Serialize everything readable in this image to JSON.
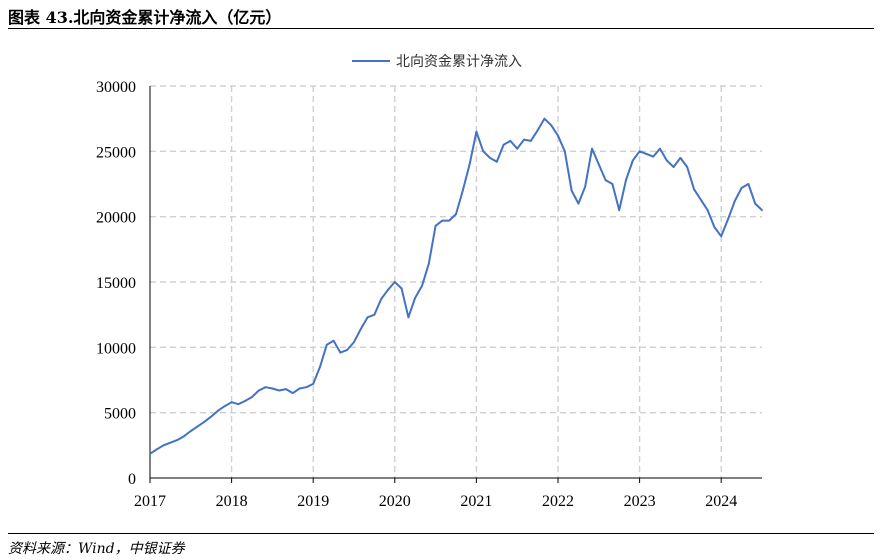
{
  "header": {
    "title": "图表 43.北向资金累计净流入（亿元）"
  },
  "footer": {
    "source": "资料来源：Wind，中银证券"
  },
  "colors": {
    "series": "#4472C4",
    "grid": "#d0d0d0",
    "axis": "#000000"
  },
  "chart_data": {
    "type": "line",
    "title": "",
    "xlabel": "",
    "ylabel": "",
    "ylim": [
      0,
      30000
    ],
    "xlim": [
      "2017-01",
      "2024-07"
    ],
    "yticks": [
      0,
      5000,
      10000,
      15000,
      20000,
      25000,
      30000
    ],
    "xticks": [
      "2017",
      "2018",
      "2019",
      "2020",
      "2021",
      "2022",
      "2023",
      "2024"
    ],
    "grid": true,
    "legend_position": "top-center",
    "series": [
      {
        "name": "北向资金累计净流入",
        "x": [
          "2017-01",
          "2017-02",
          "2017-03",
          "2017-04",
          "2017-05",
          "2017-06",
          "2017-07",
          "2017-08",
          "2017-09",
          "2017-10",
          "2017-11",
          "2017-12",
          "2018-01",
          "2018-02",
          "2018-03",
          "2018-04",
          "2018-05",
          "2018-06",
          "2018-07",
          "2018-08",
          "2018-09",
          "2018-10",
          "2018-11",
          "2018-12",
          "2019-01",
          "2019-02",
          "2019-03",
          "2019-04",
          "2019-05",
          "2019-06",
          "2019-07",
          "2019-08",
          "2019-09",
          "2019-10",
          "2019-11",
          "2019-12",
          "2020-01",
          "2020-02",
          "2020-03",
          "2020-04",
          "2020-05",
          "2020-06",
          "2020-07",
          "2020-08",
          "2020-09",
          "2020-10",
          "2020-11",
          "2020-12",
          "2021-01",
          "2021-02",
          "2021-03",
          "2021-04",
          "2021-05",
          "2021-06",
          "2021-07",
          "2021-08",
          "2021-09",
          "2021-10",
          "2021-11",
          "2021-12",
          "2022-01",
          "2022-02",
          "2022-03",
          "2022-04",
          "2022-05",
          "2022-06",
          "2022-07",
          "2022-08",
          "2022-09",
          "2022-10",
          "2022-11",
          "2022-12",
          "2023-01",
          "2023-02",
          "2023-03",
          "2023-04",
          "2023-05",
          "2023-06",
          "2023-07",
          "2023-08",
          "2023-09",
          "2023-10",
          "2023-11",
          "2023-12",
          "2024-01",
          "2024-02",
          "2024-03",
          "2024-04",
          "2024-05",
          "2024-06",
          "2024-07"
        ],
        "values": [
          1850,
          2200,
          2500,
          2700,
          2900,
          3200,
          3600,
          3950,
          4300,
          4700,
          5150,
          5500,
          5800,
          5650,
          5900,
          6200,
          6700,
          6950,
          6850,
          6700,
          6800,
          6500,
          6850,
          6950,
          7200,
          8500,
          10200,
          10500,
          9600,
          9800,
          10400,
          11400,
          12300,
          12500,
          13700,
          14400,
          15000,
          14500,
          12300,
          13800,
          14700,
          16400,
          19300,
          19700,
          19700,
          20200,
          22000,
          24000,
          26500,
          25000,
          24500,
          24200,
          25500,
          25800,
          25200,
          25900,
          25800,
          26600,
          27500,
          27000,
          26200,
          25000,
          22000,
          21000,
          22300,
          25200,
          24000,
          22800,
          22500,
          20500,
          22800,
          24300,
          25000,
          24800,
          24600,
          25200,
          24300,
          23800,
          24500,
          23800,
          22100,
          21300,
          20500,
          19200,
          18500,
          19800,
          21200,
          22200,
          22500,
          21000,
          20500
        ]
      }
    ]
  }
}
